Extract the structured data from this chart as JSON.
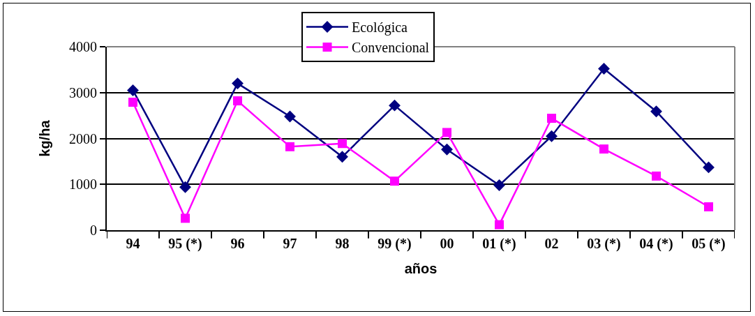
{
  "chart_data": {
    "type": "line",
    "xlabel": "años",
    "ylabel": "kg/ha",
    "categories": [
      "94",
      "95 (*)",
      "96",
      "97",
      "98",
      "99 (*)",
      "00",
      "01 (*)",
      "02",
      "03 (*)",
      "04 (*)",
      "05 (*)"
    ],
    "series": [
      {
        "name": "Ecológica",
        "color": "#000080",
        "marker": "diamond",
        "values": [
          3050,
          940,
          3200,
          2480,
          1600,
          2720,
          1760,
          980,
          2050,
          3520,
          2590,
          1370
        ]
      },
      {
        "name": "Convencional",
        "color": "#ff00ff",
        "marker": "square",
        "values": [
          2790,
          260,
          2820,
          1820,
          1890,
          1070,
          2130,
          120,
          2440,
          1770,
          1180,
          510
        ]
      }
    ],
    "ylim": [
      0,
      4000
    ],
    "yticks": [
      0,
      1000,
      2000,
      3000,
      4000
    ],
    "grid": "y",
    "legend": "top",
    "line_style": "solid"
  }
}
